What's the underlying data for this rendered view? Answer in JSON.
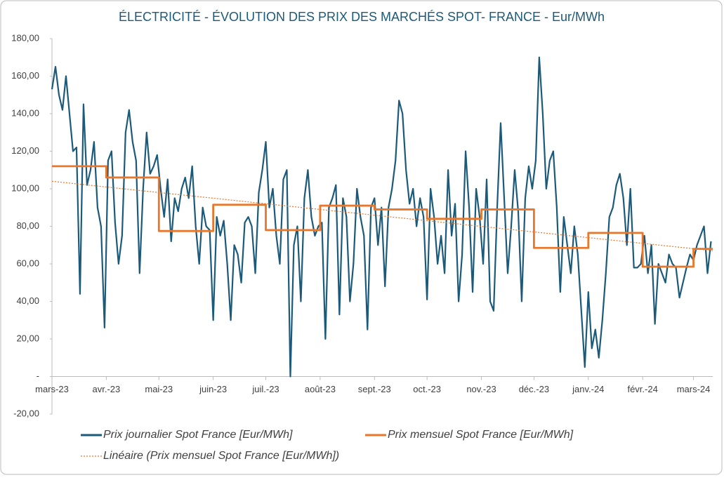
{
  "chart_data": {
    "type": "line",
    "title": "ÉLECTRICITÉ - ÉVOLUTION DES PRIX DES MARCHÉS SPOT- FRANCE - Eur/MWh",
    "xlim": [
      0,
      377
    ],
    "xticks": [
      {
        "value": 0,
        "label": "mars-23"
      },
      {
        "value": 31,
        "label": "avr.-23"
      },
      {
        "value": 61,
        "label": "mai-23"
      },
      {
        "value": 92,
        "label": "juin-23"
      },
      {
        "value": 122,
        "label": "juil.-23"
      },
      {
        "value": 153,
        "label": "août-23"
      },
      {
        "value": 184,
        "label": "sept.-23"
      },
      {
        "value": 214,
        "label": "oct.-23"
      },
      {
        "value": 245,
        "label": "nov.-23"
      },
      {
        "value": 275,
        "label": "déc.-23"
      },
      {
        "value": 306,
        "label": "janv.-24"
      },
      {
        "value": 337,
        "label": "févr.-24"
      },
      {
        "value": 366,
        "label": "mars-24"
      }
    ],
    "ylim": [
      -20,
      180
    ],
    "yticks": [
      {
        "value": -20,
        "label": "-20,00"
      },
      {
        "value": 0,
        "label": "-"
      },
      {
        "value": 20,
        "label": "20,00"
      },
      {
        "value": 40,
        "label": "40,00"
      },
      {
        "value": 60,
        "label": "60,00"
      },
      {
        "value": 80,
        "label": "80,00"
      },
      {
        "value": 100,
        "label": "100,00"
      },
      {
        "value": 120,
        "label": "120,00"
      },
      {
        "value": 140,
        "label": "140,00"
      },
      {
        "value": 160,
        "label": "160,00"
      },
      {
        "value": 180,
        "label": "180,00"
      }
    ],
    "series": [
      {
        "name": "Prix journalier Spot France [Eur/MWh]",
        "color": "#1b5a7a",
        "style": "solid",
        "x": [
          0,
          2,
          4,
          6,
          8,
          10,
          12,
          14,
          16,
          18,
          20,
          22,
          24,
          26,
          28,
          30,
          32,
          34,
          36,
          38,
          40,
          42,
          44,
          46,
          48,
          50,
          52,
          54,
          56,
          58,
          60,
          62,
          64,
          66,
          68,
          70,
          72,
          74,
          76,
          78,
          80,
          82,
          84,
          86,
          88,
          90,
          92,
          94,
          96,
          98,
          100,
          102,
          104,
          106,
          108,
          110,
          112,
          114,
          116,
          118,
          120,
          122,
          124,
          126,
          128,
          130,
          132,
          134,
          136,
          138,
          140,
          142,
          144,
          146,
          148,
          150,
          152,
          154,
          156,
          158,
          160,
          162,
          164,
          166,
          168,
          170,
          172,
          174,
          176,
          178,
          180,
          182,
          184,
          186,
          188,
          190,
          192,
          194,
          196,
          198,
          200,
          202,
          204,
          206,
          208,
          210,
          212,
          214,
          216,
          218,
          220,
          222,
          224,
          226,
          228,
          230,
          232,
          234,
          236,
          238,
          240,
          242,
          244,
          246,
          248,
          250,
          252,
          254,
          256,
          258,
          260,
          262,
          264,
          266,
          268,
          270,
          272,
          274,
          276,
          278,
          280,
          282,
          284,
          286,
          288,
          290,
          292,
          294,
          296,
          298,
          300,
          302,
          304,
          306,
          308,
          310,
          312,
          314,
          316,
          318,
          320,
          322,
          324,
          326,
          328,
          330,
          332,
          334,
          336,
          338,
          340,
          342,
          344,
          346,
          348,
          350,
          352,
          354,
          356,
          358,
          360,
          362,
          364,
          366,
          368,
          370,
          372,
          374,
          376
        ],
        "values": [
          153,
          165,
          150,
          142,
          160,
          140,
          120,
          122,
          44,
          145,
          102,
          110,
          125,
          90,
          80,
          26,
          115,
          120,
          82,
          60,
          75,
          130,
          142,
          125,
          115,
          55,
          100,
          130,
          108,
          112,
          118,
          100,
          85,
          105,
          72,
          95,
          88,
          100,
          106,
          95,
          112,
          80,
          60,
          90,
          80,
          78,
          30,
          85,
          75,
          83,
          60,
          30,
          70,
          65,
          50,
          82,
          85,
          80,
          55,
          98,
          110,
          125,
          90,
          100,
          75,
          60,
          105,
          110,
          0,
          70,
          80,
          40,
          95,
          110,
          85,
          75,
          80,
          82,
          20,
          90,
          95,
          102,
          33,
          95,
          85,
          40,
          60,
          100,
          85,
          75,
          25,
          90,
          95,
          70,
          90,
          48,
          90,
          100,
          115,
          147,
          140,
          110,
          92,
          100,
          80,
          95,
          85,
          41,
          100,
          85,
          60,
          75,
          55,
          110,
          75,
          92,
          40,
          65,
          120,
          90,
          45,
          100,
          85,
          60,
          105,
          40,
          35,
          90,
          135,
          95,
          55,
          80,
          110,
          88,
          40,
          95,
          112,
          100,
          115,
          170,
          140,
          100,
          115,
          120,
          90,
          45,
          85,
          70,
          55,
          80,
          65,
          35,
          5,
          45,
          15,
          25,
          10,
          30,
          55,
          85,
          90,
          102,
          108,
          95,
          70,
          100,
          58,
          58,
          60,
          75,
          55,
          70,
          28,
          60,
          55,
          50,
          65,
          60,
          58,
          42,
          50,
          58,
          65,
          62,
          70,
          75,
          80,
          55,
          72
        ]
      },
      {
        "name": "Prix mensuel Spot France [Eur/MWh]",
        "color": "#e8762b",
        "style": "steps",
        "x": [
          0,
          31,
          61,
          92,
          122,
          153,
          184,
          214,
          245,
          275,
          306,
          337,
          366
        ],
        "values": [
          112,
          106,
          77.5,
          91.5,
          78,
          91,
          89,
          84,
          89,
          68.5,
          76.5,
          58.5,
          68
        ]
      },
      {
        "name": "Linéaire (Prix mensuel Spot France [Eur/MWh])",
        "color": "#e8762b",
        "style": "dotted",
        "x": [
          0,
          377
        ],
        "values": [
          104,
          67
        ]
      }
    ],
    "legend": "bottom"
  }
}
